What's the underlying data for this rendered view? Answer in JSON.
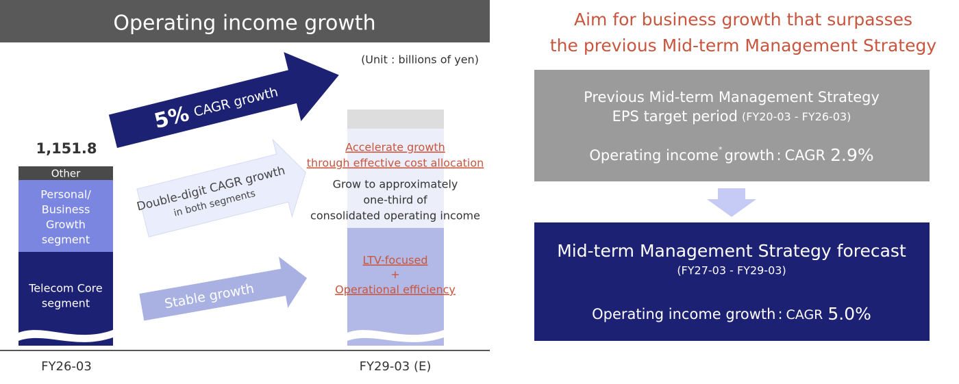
{
  "left_panel": {
    "title": "Operating income growth",
    "unit": "(Unit : billions of yen)",
    "main_arrow": {
      "percent": "5%",
      "label": "CAGR growth"
    },
    "fy26_total": "1,151.8",
    "fy26_segments": {
      "other": "Other",
      "personal": [
        "Personal/",
        "Business",
        "Growth",
        "segment"
      ],
      "telecom": [
        "Telecom Core",
        "segment"
      ]
    },
    "growth_arrow": [
      "Double-digit CAGR growth",
      "in both segments"
    ],
    "stable_arrow": "Stable growth",
    "fy29_notes": {
      "accelerate": [
        "Accelerate growth",
        "through effective cost allocation"
      ],
      "share": [
        "Grow to approximately",
        "one-third of",
        "consolidated operating income"
      ],
      "ltv": [
        "LTV-focused",
        "+",
        "Operational efficiency"
      ]
    },
    "x_labels": [
      "FY26-03",
      "FY29-03 (E)"
    ]
  },
  "right_panel": {
    "title": [
      "Aim for business growth that surpasses",
      "the previous Mid-term Management Strategy"
    ],
    "previous": {
      "heading": "Previous Mid-term Management Strategy",
      "period_label": "EPS target period",
      "period": "(FY20-03 - FY26-03)",
      "metric": "Operating income",
      "footnote_mark": "*",
      "metric_tail": "growth",
      "colon": ":",
      "cagr": "CAGR",
      "cagr_value": "2.9%"
    },
    "forecast": {
      "heading": "Mid-term Management Strategy forecast",
      "period": "(FY27-03 - FY29-03)",
      "metric": "Operating income growth",
      "colon": ":",
      "cagr": "CAGR",
      "cagr_value": "5.0%"
    }
  }
}
